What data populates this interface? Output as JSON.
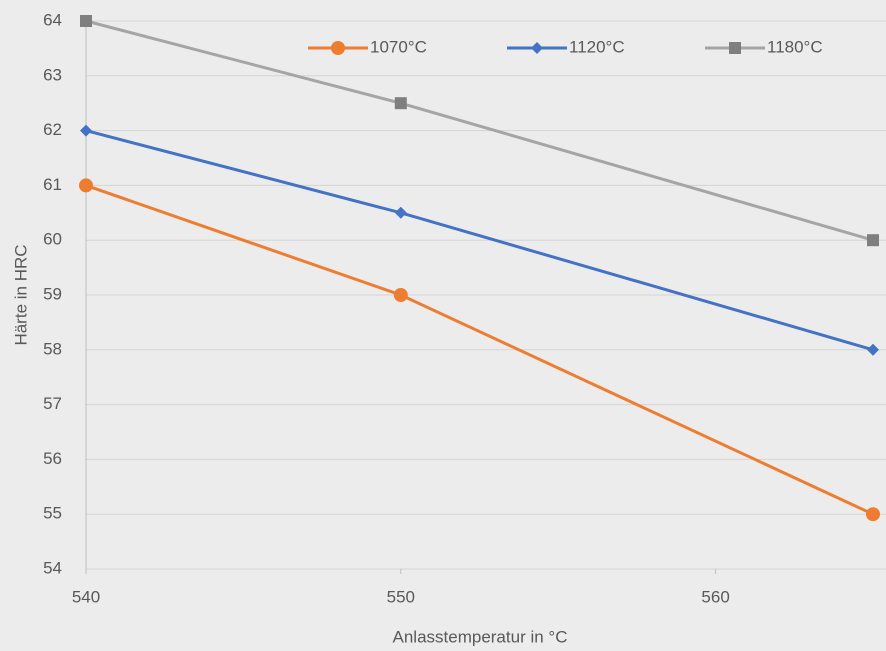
{
  "chart_data": {
    "type": "line",
    "x_label": "Anlasstemperatur in °C",
    "y_label": "Härte in HRC",
    "x": [
      540,
      550,
      565
    ],
    "series": [
      {
        "name": "1070°C",
        "color": "#ed7d31",
        "marker": "circle",
        "values": [
          61,
          59,
          55
        ]
      },
      {
        "name": "1120°C",
        "color": "#4472c4",
        "marker": "diamond",
        "values": [
          62,
          60.5,
          58
        ]
      },
      {
        "name": "1180°C",
        "color": "#a5a5a5",
        "marker": "square",
        "values": [
          64,
          62.5,
          60
        ]
      }
    ],
    "xlim": [
      540,
      565
    ],
    "xticks": [
      540,
      550,
      560
    ],
    "ylim": [
      54,
      64
    ],
    "yticks": [
      54,
      55,
      56,
      57,
      58,
      59,
      60,
      61,
      62,
      63,
      64
    ],
    "grid": true,
    "legend": "top-right"
  }
}
